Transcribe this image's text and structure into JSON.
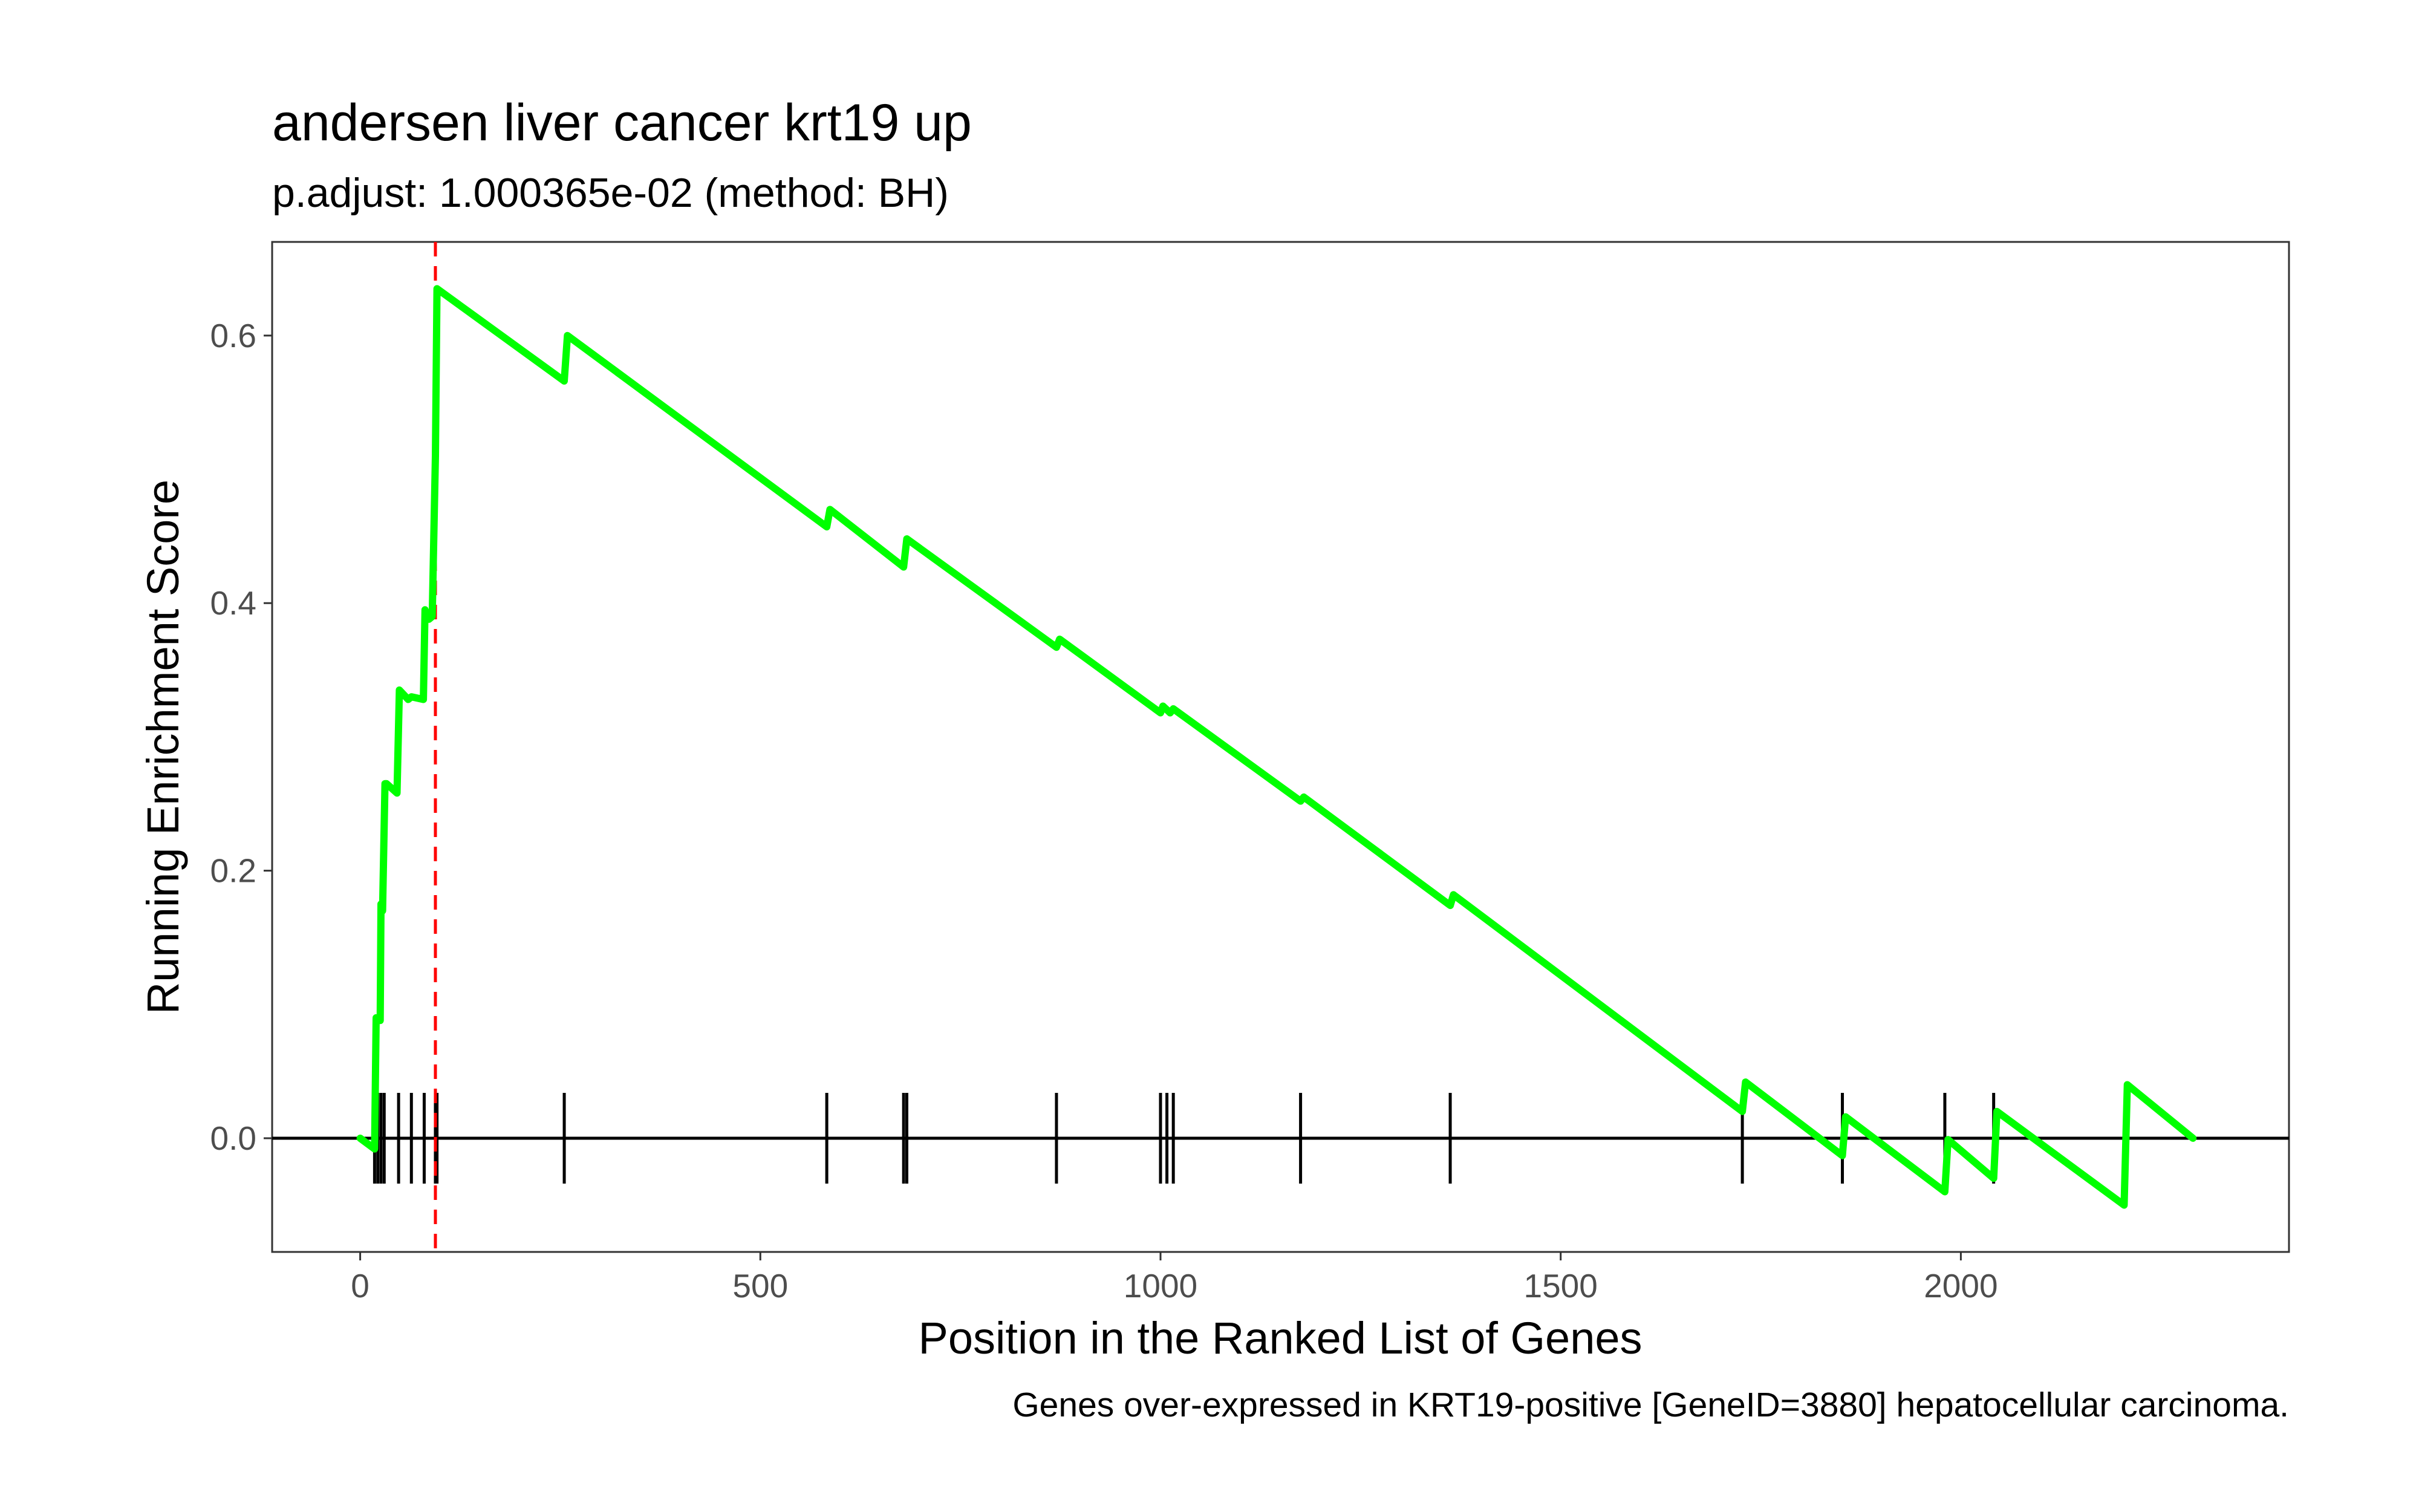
{
  "chart_data": {
    "type": "line",
    "title": "andersen liver cancer krt19 up",
    "subtitle": "p.adjust: 1.000365e-02 (method: BH)",
    "xlabel": "Position in the Ranked List of Genes",
    "ylabel": "Running Enrichment Score",
    "caption": "Genes over-expressed in KRT19-positive [GeneID=3880] hepatocellular carcinoma.",
    "xlim": [
      -110,
      2410
    ],
    "ylim": [
      -0.085,
      0.67
    ],
    "x_ticks": [
      0,
      500,
      1000,
      1500,
      2000
    ],
    "x_tick_labels": [
      "0",
      "500",
      "1000",
      "1500",
      "2000"
    ],
    "y_ticks": [
      0.0,
      0.2,
      0.4,
      0.6
    ],
    "y_tick_labels": [
      "0.0",
      "0.2",
      "0.4",
      "0.6"
    ],
    "series": [
      {
        "color": "#00ff00",
        "x": [
          0,
          18,
          20,
          25,
          26,
          28,
          31,
          33,
          46,
          49,
          60,
          64,
          79,
          81,
          86,
          90,
          94,
          96,
          255,
          259,
          583,
          587,
          679,
          683,
          870,
          874,
          1000,
          1003,
          1012,
          1016,
          1175,
          1179,
          1362,
          1366,
          1727,
          1731,
          1852,
          1856,
          1980,
          1984,
          2041,
          2045,
          2204,
          2208,
          2290
        ],
        "y": [
          0.0,
          -0.008,
          0.09,
          0.088,
          0.175,
          0.17,
          0.265,
          0.265,
          0.258,
          0.335,
          0.328,
          0.33,
          0.328,
          0.395,
          0.388,
          0.39,
          0.51,
          0.635,
          0.566,
          0.6,
          0.457,
          0.47,
          0.427,
          0.448,
          0.367,
          0.373,
          0.318,
          0.323,
          0.318,
          0.321,
          0.252,
          0.255,
          0.174,
          0.182,
          0.02,
          0.042,
          -0.013,
          0.016,
          -0.04,
          -0.001,
          -0.03,
          0.02,
          -0.05,
          0.04,
          0.0
        ]
      }
    ],
    "gene_hits": [
      18,
      22,
      26,
      30,
      48,
      64,
      80,
      94,
      96,
      255,
      583,
      679,
      683,
      870,
      1000,
      1008,
      1016,
      1175,
      1362,
      1727,
      1852,
      1980,
      2041
    ],
    "max_es_position": 94,
    "max_es_line_color": "#ff0000",
    "zero_line": 0.0,
    "grid": false,
    "legend": "none"
  }
}
